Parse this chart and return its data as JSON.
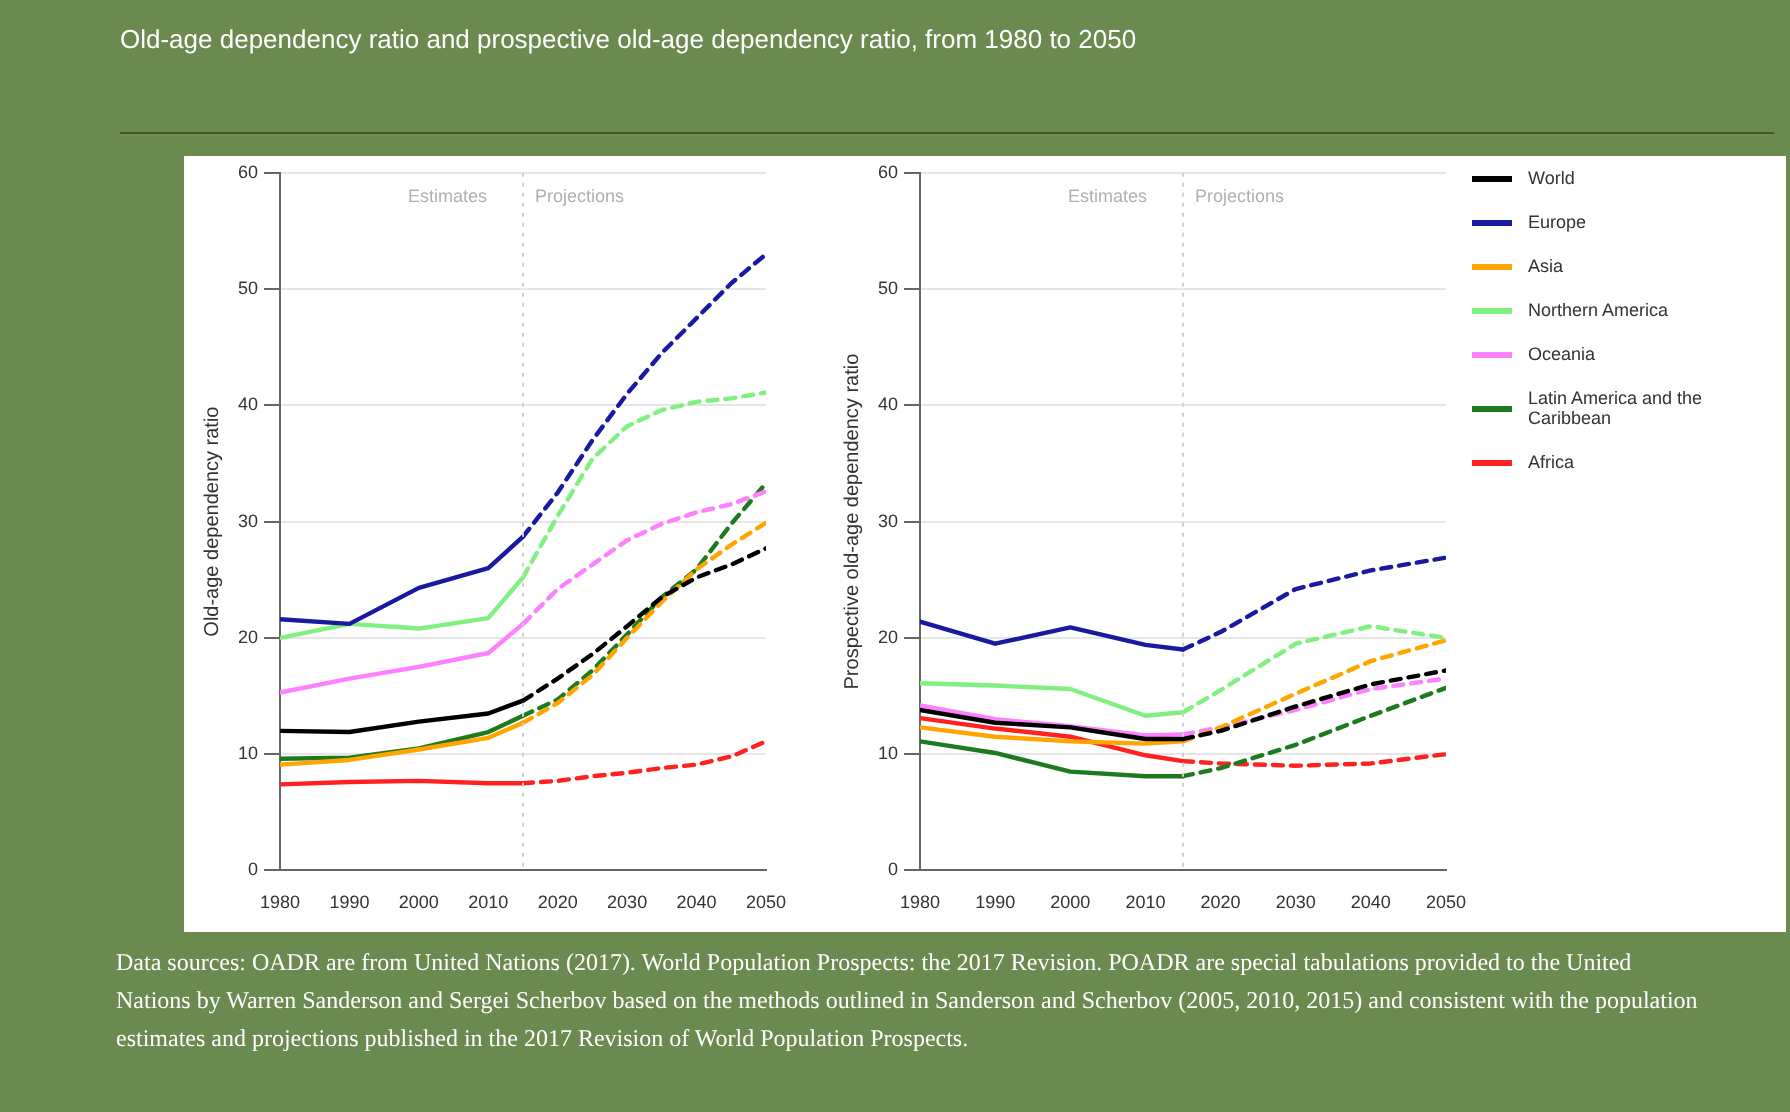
{
  "chart_data": [
    {
      "type": "line",
      "title": "Old-age dependency ratio and prospective old-age dependency ratio, from 1980 to 2050",
      "ylabel": "Old-age dependency ratio",
      "xlim": [
        1980,
        2050
      ],
      "xticks": [
        1980,
        1990,
        2000,
        2010,
        2020,
        2030,
        2040,
        2050
      ],
      "ylim": [
        0,
        60
      ],
      "yticks": [
        0,
        10,
        20,
        30,
        40,
        50,
        60
      ],
      "grid": "y",
      "ref_lines": [
        {
          "axis": "x",
          "value": 2015,
          "color": "#d0d0d0",
          "line_style": "dotted"
        }
      ],
      "annotations": [
        "Estimates",
        "Projections"
      ],
      "series": [
        {
          "color": "#000000",
          "x": [
            1980,
            1990,
            2000,
            2010,
            2015
          ],
          "values": [
            12,
            11.9,
            12.8,
            13.5,
            14.6
          ]
        },
        {
          "color": "#000000",
          "line_style": "dashed",
          "x": [
            2015,
            2020,
            2025,
            2030,
            2035,
            2040,
            2045,
            2050
          ],
          "values": [
            14.6,
            16.5,
            18.6,
            21,
            23.5,
            25.2,
            26.3,
            27.7
          ]
        },
        {
          "color": "#1a1aa0",
          "x": [
            1980,
            1990,
            2000,
            2010,
            2015
          ],
          "values": [
            21.6,
            21.2,
            24.3,
            26,
            28.7
          ]
        },
        {
          "color": "#1a1aa0",
          "line_style": "dashed",
          "x": [
            2015,
            2020,
            2025,
            2030,
            2035,
            2040,
            2045,
            2050
          ],
          "values": [
            28.7,
            32.5,
            37,
            41,
            44.5,
            47.5,
            50.5,
            53
          ]
        },
        {
          "color": "#ffa500",
          "x": [
            1980,
            1990,
            2000,
            2010,
            2015
          ],
          "values": [
            9.1,
            9.5,
            10.4,
            11.4,
            12.7
          ]
        },
        {
          "color": "#ffa500",
          "line_style": "dashed",
          "x": [
            2015,
            2020,
            2025,
            2030,
            2035,
            2040,
            2045,
            2050
          ],
          "values": [
            12.7,
            14.4,
            16.8,
            20,
            23.1,
            25.9,
            28,
            29.9
          ]
        },
        {
          "color": "#80f080",
          "x": [
            1980,
            1990,
            2000,
            2010,
            2015
          ],
          "values": [
            20,
            21.2,
            20.8,
            21.7,
            25.2
          ]
        },
        {
          "color": "#80f080",
          "line_style": "dashed",
          "x": [
            2015,
            2020,
            2025,
            2030,
            2035,
            2040,
            2045,
            2050
          ],
          "values": [
            25.2,
            30.5,
            35.4,
            38.2,
            39.6,
            40.3,
            40.6,
            41.1
          ]
        },
        {
          "color": "#ff80ff",
          "x": [
            1980,
            1990,
            2000,
            2010,
            2015
          ],
          "values": [
            15.3,
            16.5,
            17.5,
            18.7,
            21.2
          ]
        },
        {
          "color": "#ff80ff",
          "line_style": "dashed",
          "x": [
            2015,
            2020,
            2025,
            2030,
            2035,
            2040,
            2045,
            2050
          ],
          "values": [
            21.2,
            24.2,
            26.3,
            28.4,
            29.8,
            30.8,
            31.5,
            32.6
          ]
        },
        {
          "color": "#1e7a1e",
          "x": [
            1980,
            1990,
            2000,
            2010,
            2015
          ],
          "values": [
            9.6,
            9.7,
            10.5,
            11.9,
            13.3
          ]
        },
        {
          "color": "#1e7a1e",
          "line_style": "dashed",
          "x": [
            2015,
            2020,
            2025,
            2030,
            2035,
            2040,
            2045,
            2050
          ],
          "values": [
            13.3,
            14.7,
            17.2,
            20.3,
            23.5,
            25.9,
            29.8,
            33.3
          ]
        },
        {
          "color": "#ff2020",
          "x": [
            1980,
            1990,
            2000,
            2010,
            2015
          ],
          "values": [
            7.4,
            7.6,
            7.7,
            7.5,
            7.5
          ]
        },
        {
          "color": "#ff2020",
          "line_style": "dashed",
          "x": [
            2015,
            2020,
            2025,
            2030,
            2035,
            2040,
            2045,
            2050
          ],
          "values": [
            7.5,
            7.7,
            8.1,
            8.4,
            8.8,
            9.1,
            9.8,
            11.1
          ]
        }
      ]
    },
    {
      "type": "line",
      "ylabel": "Prospective old-age dependency ratio",
      "xlim": [
        1980,
        2050
      ],
      "xticks": [
        1980,
        1990,
        2000,
        2010,
        2020,
        2030,
        2040,
        2050
      ],
      "ylim": [
        0,
        60
      ],
      "yticks": [
        0,
        10,
        20,
        30,
        40,
        50,
        60
      ],
      "grid": "y",
      "legend": "right",
      "ref_lines": [
        {
          "axis": "x",
          "value": 2015,
          "color": "#d0d0d0",
          "line_style": "dotted"
        }
      ],
      "annotations": [
        "Estimates",
        "Projections",
        "Data sources: OADR are from United Nations (2017). World Population Prospects: the 2017 Revision.  POADR are special tabulations provided to the United Nations by Warren Sanderson and Sergei Scherbov based on the methods outlined in Sanderson and Scherbov (2005, 2010, 2015) and consistent with the population estimates and projections published in the 2017 Revision of World Population Prospects."
      ],
      "series": [
        {
          "name": "World",
          "color": "#000000",
          "x": [
            1980,
            1990,
            2000,
            2010,
            2015
          ],
          "values": [
            13.8,
            12.7,
            12.3,
            11.3,
            11.3
          ]
        },
        {
          "color": "#000000",
          "line_style": "dashed",
          "x": [
            2015,
            2020,
            2030,
            2040,
            2050
          ],
          "values": [
            11.3,
            12,
            14.1,
            16,
            17.2
          ]
        },
        {
          "name": "Europe",
          "color": "#1a1aa0",
          "x": [
            1980,
            1990,
            2000,
            2010,
            2015
          ],
          "values": [
            21.4,
            19.5,
            20.9,
            19.4,
            19
          ]
        },
        {
          "color": "#1a1aa0",
          "line_style": "dashed",
          "x": [
            2015,
            2020,
            2030,
            2040,
            2050
          ],
          "values": [
            19,
            20.5,
            24.2,
            25.8,
            26.9
          ]
        },
        {
          "name": "Asia",
          "color": "#ffa500",
          "x": [
            1980,
            1990,
            2000,
            2010,
            2015
          ],
          "values": [
            12.3,
            11.5,
            11.1,
            10.9,
            11.1
          ]
        },
        {
          "color": "#ffa500",
          "line_style": "dashed",
          "x": [
            2015,
            2020,
            2030,
            2040,
            2050
          ],
          "values": [
            11.1,
            12.3,
            15.2,
            18,
            19.8
          ]
        },
        {
          "name": "Northern America",
          "color": "#80f080",
          "x": [
            1980,
            1990,
            2000,
            2010,
            2015
          ],
          "values": [
            16.1,
            15.9,
            15.6,
            13.3,
            13.6
          ]
        },
        {
          "color": "#80f080",
          "line_style": "dashed",
          "x": [
            2015,
            2020,
            2030,
            2040,
            2050
          ],
          "values": [
            13.6,
            15.5,
            19.5,
            21,
            20
          ]
        },
        {
          "name": "Oceania",
          "color": "#ff80ff",
          "x": [
            1980,
            1990,
            2000,
            2010,
            2015
          ],
          "values": [
            14.2,
            13,
            12.4,
            11.6,
            11.7
          ]
        },
        {
          "color": "#ff80ff",
          "line_style": "dashed",
          "x": [
            2015,
            2020,
            2030,
            2040,
            2050
          ],
          "values": [
            11.7,
            12.3,
            13.8,
            15.6,
            16.5
          ]
        },
        {
          "name": "Latin America and the Caribbean",
          "color": "#1e7a1e",
          "x": [
            1980,
            1990,
            2000,
            2010,
            2015
          ],
          "values": [
            11.1,
            10.1,
            8.5,
            8.1,
            8.1
          ]
        },
        {
          "color": "#1e7a1e",
          "line_style": "dashed",
          "x": [
            2015,
            2020,
            2030,
            2040,
            2050
          ],
          "values": [
            8.1,
            8.8,
            10.8,
            13.3,
            15.7
          ]
        },
        {
          "name": "Africa",
          "color": "#ff2020",
          "x": [
            1980,
            1990,
            2000,
            2010,
            2015
          ],
          "values": [
            13.1,
            12.2,
            11.5,
            9.9,
            9.4
          ]
        },
        {
          "color": "#ff2020",
          "line_style": "dashed",
          "x": [
            2015,
            2020,
            2030,
            2040,
            2050
          ],
          "values": [
            9.4,
            9.2,
            9,
            9.2,
            10
          ]
        }
      ]
    }
  ]
}
